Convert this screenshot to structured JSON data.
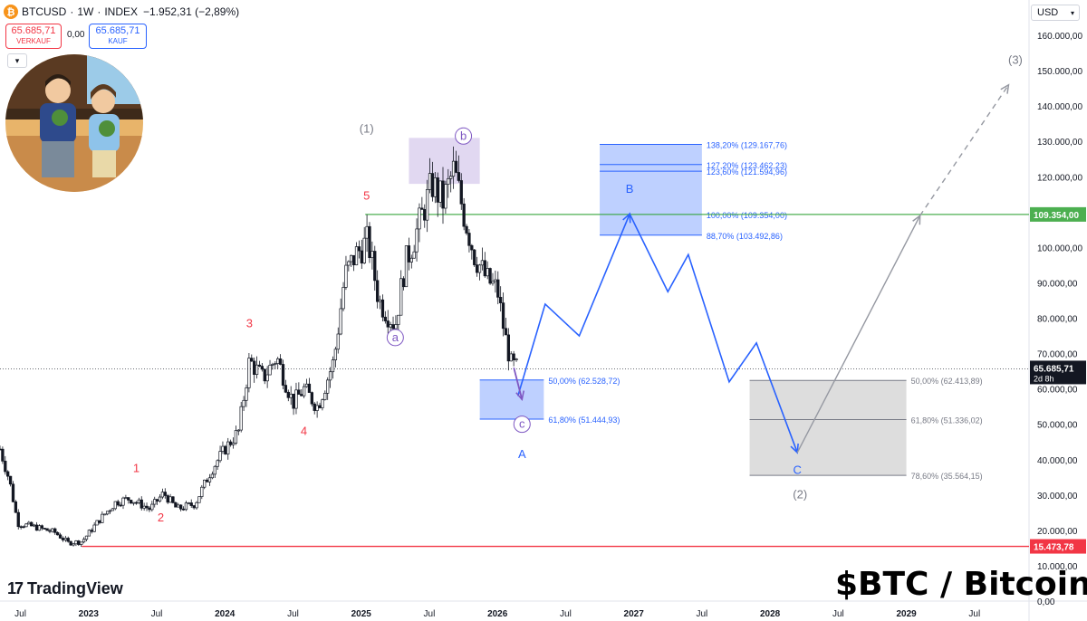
{
  "header": {
    "symbol": "BTCUSD",
    "interval": "1W",
    "exchange": "INDEX",
    "change": "−1.952,31 (−2,89%)",
    "sell_price": "65.685,71",
    "sell_label": "VERKAUF",
    "buy_price": "65.685,71",
    "buy_label": "KAUF",
    "spread": "0,00",
    "currency": "USD",
    "coin_glyph": "₿",
    "collapse_icon": "chevron-down-icon"
  },
  "branding": {
    "logo_text": "TradingView",
    "title": "$BTC / Bitcoin"
  },
  "chart_data": {
    "type": "candlestick",
    "timeframe": "1W",
    "price_axis": {
      "range": [
        0,
        170000
      ],
      "ticks": [
        "160.000,00",
        "150.000,00",
        "140.000,00",
        "130.000,00",
        "120.000,00",
        "110.000,00",
        "100.000,00",
        "90.000,00",
        "80.000,00",
        "70.000,00",
        "60.000,00",
        "50.000,00",
        "40.000,00",
        "30.000,00",
        "20.000,00",
        "10.000,00",
        "0,00"
      ],
      "tick_values": [
        160000,
        150000,
        140000,
        130000,
        120000,
        110000,
        100000,
        90000,
        80000,
        70000,
        60000,
        50000,
        40000,
        30000,
        20000,
        10000,
        0
      ]
    },
    "time_axis": {
      "range": [
        2022.35,
        2029.9
      ],
      "ticks": [
        {
          "label": "Jul",
          "t": 2022.5
        },
        {
          "label": "2023",
          "t": 2023.0
        },
        {
          "label": "Jul",
          "t": 2023.5
        },
        {
          "label": "2024",
          "t": 2024.0
        },
        {
          "label": "Jul",
          "t": 2024.5
        },
        {
          "label": "2025",
          "t": 2025.0
        },
        {
          "label": "Jul",
          "t": 2025.5
        },
        {
          "label": "2026",
          "t": 2026.0
        },
        {
          "label": "Jul",
          "t": 2026.5
        },
        {
          "label": "2027",
          "t": 2027.0
        },
        {
          "label": "Jul",
          "t": 2027.5
        },
        {
          "label": "2028",
          "t": 2028.0
        },
        {
          "label": "Jul",
          "t": 2028.5
        },
        {
          "label": "2029",
          "t": 2029.0
        },
        {
          "label": "Jul",
          "t": 2029.5
        }
      ]
    },
    "price_path": [
      [
        2022.35,
        43000
      ],
      [
        2022.42,
        34000
      ],
      [
        2022.48,
        22000
      ],
      [
        2022.6,
        21000
      ],
      [
        2022.75,
        19500
      ],
      [
        2022.85,
        16500
      ],
      [
        2022.95,
        16800
      ],
      [
        2023.08,
        23000
      ],
      [
        2023.2,
        28000
      ],
      [
        2023.3,
        29000
      ],
      [
        2023.45,
        26000
      ],
      [
        2023.55,
        30500
      ],
      [
        2023.65,
        26000
      ],
      [
        2023.78,
        27500
      ],
      [
        2023.9,
        37000
      ],
      [
        2024.0,
        43000
      ],
      [
        2024.1,
        48000
      ],
      [
        2024.18,
        68000
      ],
      [
        2024.28,
        63000
      ],
      [
        2024.38,
        69000
      ],
      [
        2024.5,
        56000
      ],
      [
        2024.58,
        60000
      ],
      [
        2024.68,
        55000
      ],
      [
        2024.8,
        68000
      ],
      [
        2024.88,
        92000
      ],
      [
        2024.96,
        98000
      ],
      [
        2025.05,
        102000
      ],
      [
        2025.13,
        85000
      ],
      [
        2025.25,
        78000
      ],
      [
        2025.32,
        95000
      ],
      [
        2025.42,
        106000
      ],
      [
        2025.52,
        118000
      ],
      [
        2025.6,
        113000
      ],
      [
        2025.68,
        122000
      ],
      [
        2025.75,
        110000
      ],
      [
        2025.83,
        98000
      ],
      [
        2025.92,
        91000
      ],
      [
        2026.0,
        88000
      ],
      [
        2026.05,
        76000
      ],
      [
        2026.1,
        67000
      ],
      [
        2026.15,
        65685
      ]
    ],
    "current_price": {
      "value": 65685.71,
      "label": "65.685,71",
      "countdown": "2d 8h"
    },
    "horizontal_lines": [
      {
        "name": "resistance",
        "value": 109354,
        "label": "109.354,00",
        "color": "#4caf50"
      },
      {
        "name": "support",
        "value": 15473.78,
        "label": "15.473,78",
        "color": "#f23645"
      }
    ],
    "zones": [
      {
        "name": "top-zone",
        "t1": 2025.35,
        "t2": 2025.87,
        "p1": 118000,
        "p2": 131000,
        "color": "#b39ddb"
      },
      {
        "name": "zone-a",
        "t1": 2025.87,
        "t2": 2026.34,
        "p1": 51444.93,
        "p2": 62528.72,
        "color": "#2962ff",
        "levels": [
          {
            "label": "50,00% (62.528,72)",
            "value": 62528.72
          },
          {
            "label": "61,80% (51.444,93)",
            "value": 51444.93
          }
        ]
      },
      {
        "name": "zone-b",
        "t1": 2026.75,
        "t2": 2027.5,
        "p1": 103492.86,
        "p2": 129167.76,
        "color": "#2962ff",
        "levels": [
          {
            "label": "138,20% (129.167,76)",
            "value": 129167.76
          },
          {
            "label": "127,20% (123.462,23)",
            "value": 123462.23
          },
          {
            "label": "123,60% (121.594,96)",
            "value": 121594.96
          },
          {
            "label": "100,00% (109.354,00)",
            "value": 109354
          },
          {
            "label": "88,70% (103.492,86)",
            "value": 103492.86
          }
        ]
      },
      {
        "name": "zone-c",
        "t1": 2027.85,
        "t2": 2029.0,
        "p1": 35564.15,
        "p2": 62413.89,
        "color": "#9e9e9e",
        "levels": [
          {
            "label": "50,00% (62.413,89)",
            "value": 62413.89
          },
          {
            "label": "61,80% (51.336,02)",
            "value": 51336.02
          },
          {
            "label": "78,60% (35.564,15)",
            "value": 35564.15
          }
        ]
      }
    ],
    "projection_blue": [
      [
        2026.15,
        58000
      ],
      [
        2026.35,
        84000
      ],
      [
        2026.6,
        75000
      ],
      [
        2026.97,
        109500
      ],
      [
        2027.25,
        87500
      ],
      [
        2027.4,
        98000
      ],
      [
        2027.7,
        62000
      ],
      [
        2027.9,
        73000
      ],
      [
        2028.2,
        42000
      ]
    ],
    "projection_purple": [
      [
        2026.12,
        66000
      ],
      [
        2026.18,
        57000
      ]
    ],
    "projection_gray": [
      [
        2028.2,
        42000
      ],
      [
        2029.1,
        109000
      ]
    ],
    "projection_gray_dashed": [
      [
        2029.1,
        109000
      ],
      [
        2029.75,
        146000
      ]
    ],
    "wave_labels": [
      {
        "text": "1",
        "t": 2023.35,
        "p": 36500,
        "color": "#f23645",
        "style": "plain"
      },
      {
        "text": "2",
        "t": 2023.53,
        "p": 22500,
        "color": "#f23645",
        "style": "plain"
      },
      {
        "text": "3",
        "t": 2024.18,
        "p": 77500,
        "color": "#f23645",
        "style": "plain"
      },
      {
        "text": "4",
        "t": 2024.58,
        "p": 47000,
        "color": "#f23645",
        "style": "plain"
      },
      {
        "text": "5",
        "t": 2025.04,
        "p": 113500,
        "color": "#f23645",
        "style": "plain"
      },
      {
        "text": "(1)",
        "t": 2025.04,
        "p": 132500,
        "color": "#787b86",
        "style": "plain"
      },
      {
        "text": "a",
        "t": 2025.25,
        "p": 73500,
        "color": "#7e57c2",
        "style": "circle"
      },
      {
        "text": "b",
        "t": 2025.75,
        "p": 130500,
        "color": "#7e57c2",
        "style": "circle"
      },
      {
        "text": "c",
        "t": 2026.18,
        "p": 49000,
        "color": "#7e57c2",
        "style": "circle"
      },
      {
        "text": "A",
        "t": 2026.18,
        "p": 40500,
        "color": "#2962ff",
        "style": "plain"
      },
      {
        "text": "B",
        "t": 2026.97,
        "p": 115500,
        "color": "#2962ff",
        "style": "plain"
      },
      {
        "text": "C",
        "t": 2028.2,
        "p": 36000,
        "color": "#2962ff",
        "style": "plain"
      },
      {
        "text": "(2)",
        "t": 2028.22,
        "p": 29000,
        "color": "#787b86",
        "style": "plain"
      },
      {
        "text": "(3)",
        "t": 2029.8,
        "p": 152000,
        "color": "#787b86",
        "style": "plain"
      }
    ]
  }
}
